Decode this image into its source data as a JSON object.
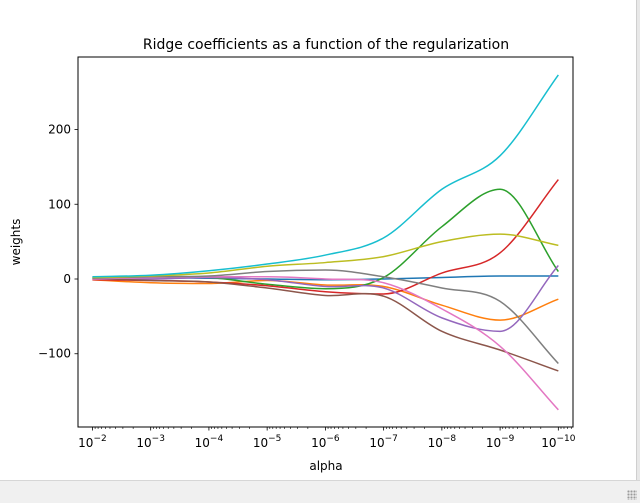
{
  "chart_data": {
    "type": "line",
    "title": "Ridge coefficients as a function of the regularization",
    "xlabel": "alpha",
    "ylabel": "weights",
    "xscale": "log",
    "x_inverted": true,
    "xlim": [
      0.0177,
      5.6e-11
    ],
    "ylim": [
      -198,
      297
    ],
    "x": [
      0.01,
      0.001,
      0.0001,
      1e-05,
      1e-06,
      1e-07,
      1e-08,
      1e-09,
      1e-10
    ],
    "x_tick_labels": [
      {
        "base": "10",
        "exp": "−2"
      },
      {
        "base": "10",
        "exp": "−3"
      },
      {
        "base": "10",
        "exp": "−4"
      },
      {
        "base": "10",
        "exp": "−5"
      },
      {
        "base": "10",
        "exp": "−6"
      },
      {
        "base": "10",
        "exp": "−7"
      },
      {
        "base": "10",
        "exp": "−8"
      },
      {
        "base": "10",
        "exp": "−9"
      },
      {
        "base": "10",
        "exp": "−10"
      }
    ],
    "y_ticks": [
      -100,
      0,
      100,
      200
    ],
    "y_tick_labels": [
      "−100",
      "0",
      "100",
      "200"
    ],
    "grid": false,
    "legend": "none",
    "series": [
      {
        "color": "#1f77b4",
        "values": [
          2,
          2,
          1,
          0,
          -1,
          0,
          2,
          4,
          4
        ]
      },
      {
        "color": "#ff7f0e",
        "values": [
          -1,
          -5,
          -6,
          -2,
          -8,
          -10,
          -35,
          -55,
          -27
        ]
      },
      {
        "color": "#2ca02c",
        "values": [
          2,
          3,
          2,
          -7,
          -13,
          2,
          70,
          120,
          10
        ]
      },
      {
        "color": "#d62728",
        "values": [
          -1,
          -2,
          -4,
          -9,
          -17,
          -20,
          8,
          35,
          133
        ]
      },
      {
        "color": "#9467bd",
        "values": [
          0,
          0,
          2,
          -1,
          -10,
          -12,
          -52,
          -70,
          18
        ]
      },
      {
        "color": "#8c564b",
        "values": [
          1,
          -2,
          -4,
          -12,
          -22,
          -23,
          -70,
          -95,
          -123
        ]
      },
      {
        "color": "#e377c2",
        "values": [
          0,
          2,
          3,
          3,
          0,
          -5,
          -40,
          -90,
          -175
        ]
      },
      {
        "color": "#7f7f7f",
        "values": [
          1,
          3,
          4,
          10,
          12,
          3,
          -12,
          -30,
          -113
        ]
      },
      {
        "color": "#bcbd22",
        "values": [
          2,
          4,
          8,
          17,
          22,
          30,
          50,
          60,
          45
        ]
      },
      {
        "color": "#17becf",
        "values": [
          3,
          5,
          11,
          20,
          32,
          55,
          120,
          165,
          273
        ]
      }
    ]
  }
}
